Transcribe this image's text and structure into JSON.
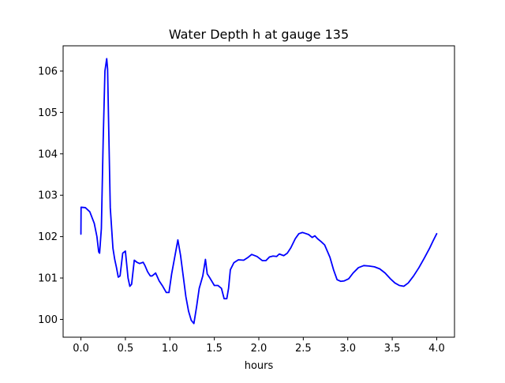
{
  "chart_data": {
    "type": "line",
    "title": "Water Depth h at gauge 135",
    "xlabel": "hours",
    "ylabel": "",
    "xlim": [
      -0.2,
      4.2
    ],
    "ylim": [
      99.57,
      106.61
    ],
    "x_ticks": [
      0.0,
      0.5,
      1.0,
      1.5,
      2.0,
      2.5,
      3.0,
      3.5,
      4.0
    ],
    "x_tick_labels": [
      "0.0",
      "0.5",
      "1.0",
      "1.5",
      "2.0",
      "2.5",
      "3.0",
      "3.5",
      "4.0"
    ],
    "y_ticks": [
      100,
      101,
      102,
      103,
      104,
      105,
      106
    ],
    "y_tick_labels": [
      "100",
      "101",
      "102",
      "103",
      "104",
      "105",
      "106"
    ],
    "grid": false,
    "series": [
      {
        "color": "#0000ff",
        "x": [
          0.0,
          0.002,
          0.05,
          0.1,
          0.15,
          0.18,
          0.2,
          0.21,
          0.23,
          0.25,
          0.27,
          0.29,
          0.3,
          0.31,
          0.33,
          0.36,
          0.38,
          0.4,
          0.42,
          0.44,
          0.47,
          0.5,
          0.53,
          0.55,
          0.57,
          0.6,
          0.63,
          0.66,
          0.7,
          0.72,
          0.75,
          0.78,
          0.8,
          0.84,
          0.88,
          0.92,
          0.96,
          0.99,
          1.02,
          1.05,
          1.09,
          1.12,
          1.15,
          1.18,
          1.21,
          1.24,
          1.27,
          1.3,
          1.33,
          1.37,
          1.4,
          1.42,
          1.45,
          1.5,
          1.54,
          1.58,
          1.61,
          1.64,
          1.66,
          1.68,
          1.72,
          1.77,
          1.83,
          1.88,
          1.92,
          1.98,
          2.04,
          2.08,
          2.12,
          2.16,
          2.2,
          2.23,
          2.28,
          2.32,
          2.36,
          2.41,
          2.45,
          2.49,
          2.52,
          2.56,
          2.6,
          2.63,
          2.66,
          2.7,
          2.74,
          2.8,
          2.84,
          2.88,
          2.92,
          2.96,
          3.01,
          3.06,
          3.12,
          3.18,
          3.24,
          3.3,
          3.36,
          3.42,
          3.48,
          3.53,
          3.58,
          3.63,
          3.68,
          3.74,
          3.8,
          3.86,
          3.92,
          3.96,
          4.0
        ],
        "y": [
          102.06,
          102.71,
          102.7,
          102.6,
          102.32,
          102.0,
          101.63,
          101.6,
          102.2,
          104.3,
          106.0,
          106.3,
          106.05,
          104.9,
          102.7,
          101.72,
          101.45,
          101.25,
          101.02,
          101.05,
          101.6,
          101.65,
          101.0,
          100.8,
          100.85,
          101.43,
          101.38,
          101.35,
          101.38,
          101.3,
          101.15,
          101.05,
          101.05,
          101.12,
          100.93,
          100.8,
          100.65,
          100.65,
          101.1,
          101.45,
          101.92,
          101.55,
          101.05,
          100.55,
          100.2,
          99.98,
          99.9,
          100.3,
          100.75,
          101.05,
          101.45,
          101.1,
          101.0,
          100.82,
          100.82,
          100.75,
          100.5,
          100.5,
          100.75,
          101.2,
          101.37,
          101.44,
          101.43,
          101.5,
          101.57,
          101.52,
          101.42,
          101.42,
          101.51,
          101.53,
          101.52,
          101.58,
          101.54,
          101.6,
          101.73,
          101.95,
          102.07,
          102.1,
          102.08,
          102.05,
          101.98,
          102.02,
          101.95,
          101.88,
          101.8,
          101.5,
          101.2,
          100.96,
          100.92,
          100.93,
          100.98,
          101.12,
          101.25,
          101.3,
          101.29,
          101.27,
          101.22,
          101.12,
          100.98,
          100.88,
          100.82,
          100.8,
          100.88,
          101.05,
          101.25,
          101.48,
          101.72,
          101.9,
          102.07
        ]
      }
    ]
  }
}
